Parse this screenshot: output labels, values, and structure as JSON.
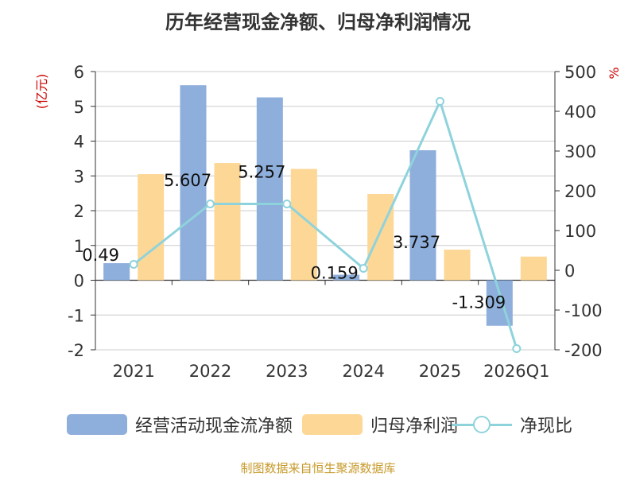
{
  "chart_data": {
    "type": "bar",
    "title": "历年经营现金净额、归母净利润情况",
    "categories": [
      "2021",
      "2022",
      "2023",
      "2024",
      "2025",
      "2026Q1"
    ],
    "series": [
      {
        "name": "经营活动现金流净额",
        "type": "bar",
        "axis": "left",
        "color": "#8eaedb",
        "values": [
          0.49,
          5.607,
          5.257,
          0.159,
          3.737,
          -1.309
        ],
        "labels": [
          "0.49",
          "5.607",
          "5.257",
          "0.159",
          "3.737",
          "-1.309"
        ]
      },
      {
        "name": "归母净利润",
        "type": "bar",
        "axis": "left",
        "color": "#fdd796",
        "values": [
          3.05,
          3.37,
          3.2,
          2.48,
          0.88,
          0.68
        ]
      },
      {
        "name": "净现比",
        "type": "line",
        "axis": "right",
        "color": "#8ed3dc",
        "values": [
          15,
          167,
          167,
          5,
          425,
          -197
        ]
      }
    ],
    "y_left": {
      "label": "(亿元)",
      "min": -2,
      "max": 6,
      "ticks": [
        "6",
        "5",
        "4",
        "3",
        "2",
        "1",
        "0",
        "-1",
        "-2"
      ]
    },
    "y_right": {
      "label": "%",
      "min": -200,
      "max": 500,
      "ticks": [
        "500",
        "400",
        "300",
        "200",
        "100",
        "0",
        "-100",
        "-200"
      ]
    },
    "grid": true,
    "legend_position": "bottom"
  },
  "colors": {
    "axis_label_red": "#cc0000",
    "source_text": "#c79a2a",
    "grid": "#cccccc"
  },
  "source": "制图数据来自恒生聚源数据库"
}
